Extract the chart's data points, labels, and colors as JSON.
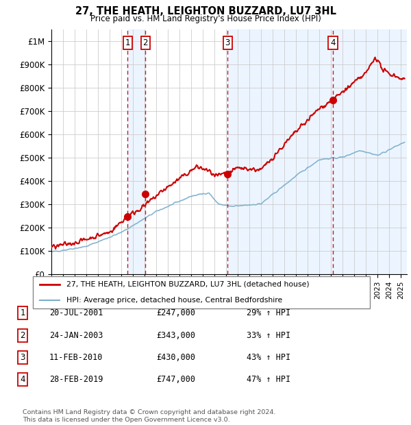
{
  "title": "27, THE HEATH, LEIGHTON BUZZARD, LU7 3HL",
  "subtitle": "Price paid vs. HM Land Registry's House Price Index (HPI)",
  "ylabel_ticks": [
    "£0",
    "£100K",
    "£200K",
    "£300K",
    "£400K",
    "£500K",
    "£600K",
    "£700K",
    "£800K",
    "£900K",
    "£1M"
  ],
  "ytick_values": [
    0,
    100000,
    200000,
    300000,
    400000,
    500000,
    600000,
    700000,
    800000,
    900000,
    1000000
  ],
  "ylim": [
    0,
    1050000
  ],
  "xlim_start": 1995.0,
  "xlim_end": 2025.5,
  "grid_color": "#cccccc",
  "red_line_color": "#cc0000",
  "blue_line_color": "#7aadcc",
  "vline_color": "#cc0000",
  "shade_color": "#ddeeff",
  "transactions": [
    {
      "id": 1,
      "date_num": 2001.55,
      "price": 247000
    },
    {
      "id": 2,
      "date_num": 2003.07,
      "price": 343000
    },
    {
      "id": 3,
      "date_num": 2010.12,
      "price": 430000
    },
    {
      "id": 4,
      "date_num": 2019.16,
      "price": 747000
    }
  ],
  "legend_line1": "27, THE HEATH, LEIGHTON BUZZARD, LU7 3HL (detached house)",
  "legend_line2": "HPI: Average price, detached house, Central Bedfordshire",
  "footer1": "Contains HM Land Registry data © Crown copyright and database right 2024.",
  "footer2": "This data is licensed under the Open Government Licence v3.0.",
  "table_rows": [
    {
      "id": 1,
      "date": "20-JUL-2001",
      "price": "£247,000",
      "pct": "29% ↑ HPI"
    },
    {
      "id": 2,
      "date": "24-JAN-2003",
      "price": "£343,000",
      "pct": "33% ↑ HPI"
    },
    {
      "id": 3,
      "date": "11-FEB-2010",
      "price": "£430,000",
      "pct": "43% ↑ HPI"
    },
    {
      "id": 4,
      "date": "28-FEB-2019",
      "price": "£747,000",
      "pct": "47% ↑ HPI"
    }
  ]
}
